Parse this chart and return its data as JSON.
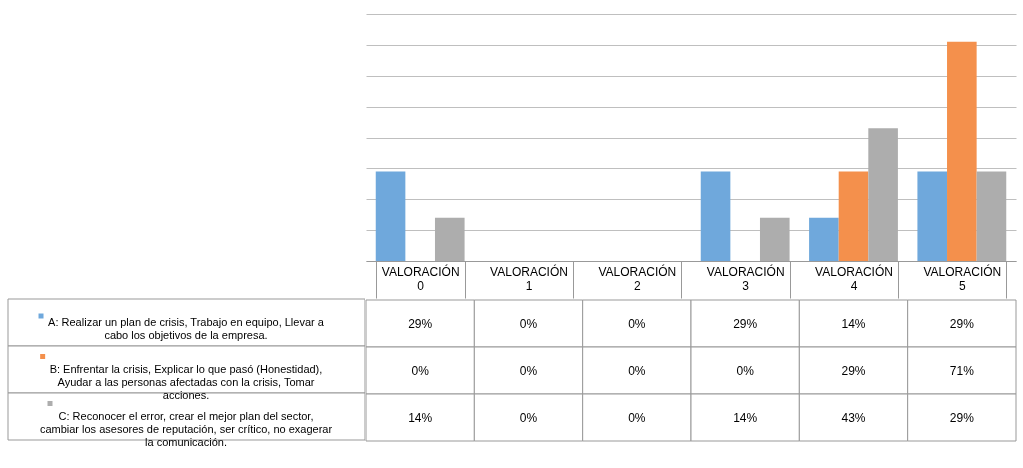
{
  "chart_data": {
    "type": "bar",
    "categories": [
      "VALORACIÓN 0",
      "VALORACIÓN 1",
      "VALORACIÓN 2",
      "VALORACIÓN 3",
      "VALORACIÓN 4",
      "VALORACIÓN 5"
    ],
    "series": [
      {
        "name": "A: Realizar un plan de crisis, Trabajo en equipo, Llevar a cabo los objetivos de la empresa.",
        "color": "#6fa8dc",
        "values": [
          29,
          0,
          0,
          29,
          14,
          29
        ],
        "value_labels": [
          "29%",
          "0%",
          "0%",
          "29%",
          "14%",
          "29%"
        ]
      },
      {
        "name": "B: Enfrentar la crisis, Explicar lo que pasó (Honestidad), Ayudar a las personas afectadas con la crisis, Tomar acciones.",
        "color": "#f4904c",
        "values": [
          0,
          0,
          0,
          0,
          29,
          71
        ],
        "value_labels": [
          "0%",
          "0%",
          "0%",
          "0%",
          "29%",
          "71%"
        ]
      },
      {
        "name": "C:  Reconocer el error, crear el mejor plan del sector, cambiar los asesores de reputación, ser crítico, no exagerar la comunicación.",
        "color": "#adadad",
        "values": [
          14,
          0,
          0,
          14,
          43,
          29
        ],
        "value_labels": [
          "14%",
          "0%",
          "0%",
          "14%",
          "43%",
          "29%"
        ]
      }
    ],
    "ylim": [
      0,
      80
    ],
    "yticks": [
      {
        "value": 0,
        "label": null
      },
      {
        "value": 10,
        "label": null
      },
      {
        "value": 20,
        "label": null
      },
      {
        "value": 30,
        "label": null
      },
      {
        "value": 40,
        "label": null
      },
      {
        "value": 50,
        "label": null
      },
      {
        "value": 60,
        "label": null
      },
      {
        "value": 70,
        "label": null
      },
      {
        "value": 80,
        "label": null
      }
    ],
    "grid": "y",
    "tick_labels": "x",
    "legend": "bottom left"
  }
}
